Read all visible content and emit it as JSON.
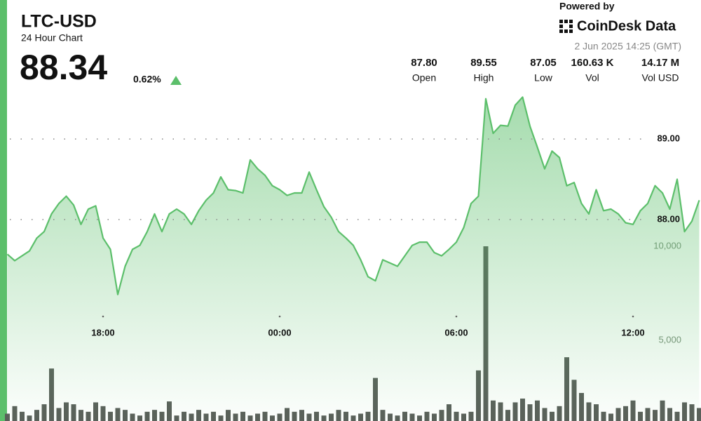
{
  "header": {
    "symbol": "LTC-USD",
    "subtitle": "24 Hour Chart",
    "price": "88.34",
    "change": "0.62%",
    "powered_by": "Powered by",
    "brand": "CoinDesk Data",
    "timestamp": "2 Jun 2025 14:25 (GMT)",
    "stats": [
      {
        "value": "87.80",
        "label": "Open"
      },
      {
        "value": "89.55",
        "label": "High"
      },
      {
        "value": "87.05",
        "label": "Low"
      },
      {
        "value": "160.63 K",
        "label": "Vol"
      },
      {
        "value": "14.17 M",
        "label": "Vol USD"
      }
    ]
  },
  "chart_data": {
    "type": "line",
    "categories": [
      null,
      null,
      null,
      null,
      null,
      null,
      null,
      null,
      null,
      null,
      null,
      null,
      null,
      "18:00",
      null,
      null,
      null,
      null,
      null,
      null,
      null,
      null,
      null,
      null,
      null,
      null,
      null,
      null,
      null,
      null,
      null,
      null,
      null,
      null,
      null,
      null,
      null,
      "00:00",
      null,
      null,
      null,
      null,
      null,
      null,
      null,
      null,
      null,
      null,
      null,
      null,
      null,
      null,
      null,
      null,
      null,
      null,
      null,
      null,
      null,
      null,
      null,
      "06:00",
      null,
      null,
      null,
      null,
      null,
      null,
      null,
      null,
      null,
      null,
      null,
      null,
      null,
      null,
      null,
      null,
      null,
      null,
      null,
      null,
      null,
      null,
      null,
      "12:00",
      null,
      null,
      null,
      null,
      null,
      null,
      null,
      null,
      null
    ],
    "series": [
      {
        "color": "#5cbf6b",
        "values": [
          87.57,
          87.49,
          87.55,
          87.61,
          87.77,
          87.85,
          88.07,
          88.2,
          88.29,
          88.18,
          87.94,
          88.13,
          88.17,
          87.77,
          87.63,
          87.07,
          87.42,
          87.63,
          87.68,
          87.85,
          88.07,
          87.85,
          88.07,
          88.13,
          88.07,
          87.94,
          88.11,
          88.24,
          88.33,
          88.53,
          88.37,
          88.36,
          88.33,
          88.74,
          88.63,
          88.55,
          88.42,
          88.37,
          88.3,
          88.33,
          88.33,
          88.59,
          88.37,
          88.16,
          88.03,
          87.85,
          87.77,
          87.68,
          87.5,
          87.29,
          87.24,
          87.5,
          87.46,
          87.42,
          87.55,
          87.68,
          87.72,
          87.72,
          87.59,
          87.55,
          87.63,
          87.72,
          87.9,
          88.2,
          88.29,
          89.5,
          89.07,
          89.17,
          89.16,
          89.42,
          89.52,
          89.16,
          88.9,
          88.63,
          88.85,
          88.77,
          88.42,
          88.46,
          88.2,
          88.07,
          88.37,
          88.11,
          88.13,
          88.07,
          87.96,
          87.94,
          88.11,
          88.2,
          88.42,
          88.33,
          88.13,
          88.5,
          87.85,
          87.98,
          88.24
        ]
      },
      {
        "type": "bar",
        "axis": "y2",
        "color": "#5a5f5a",
        "values": [
          1100,
          1500,
          1200,
          1000,
          1300,
          1600,
          3500,
          1400,
          1700,
          1600,
          1300,
          1200,
          1700,
          1500,
          1200,
          1400,
          1300,
          1100,
          1000,
          1200,
          1300,
          1200,
          1750,
          1000,
          1200,
          1100,
          1300,
          1100,
          1200,
          1000,
          1300,
          1100,
          1200,
          1000,
          1100,
          1200,
          1000,
          1100,
          1400,
          1200,
          1300,
          1100,
          1200,
          1000,
          1100,
          1300,
          1200,
          1000,
          1100,
          1200,
          3000,
          1300,
          1100,
          1000,
          1200,
          1100,
          1000,
          1200,
          1100,
          1300,
          1600,
          1200,
          1100,
          1200,
          3400,
          10000,
          1800,
          1700,
          1300,
          1700,
          1900,
          1600,
          1800,
          1400,
          1200,
          1500,
          4100,
          2900,
          2200,
          1700,
          1600,
          1200,
          1100,
          1400,
          1500,
          1800,
          1200,
          1400,
          1300,
          1800,
          1400,
          1200,
          1700,
          1600,
          1400
        ]
      }
    ],
    "ylim": [
      85.5,
      89.68
    ],
    "yticks": [
      {
        "value": 88,
        "label": "88.00"
      },
      {
        "value": 89,
        "label": "89.00"
      }
    ],
    "y2lim": [
      0,
      18620
    ],
    "y2ticks": [
      {
        "value": 5000,
        "label": "5,000"
      },
      {
        "value": 10000,
        "label": "10,000"
      }
    ],
    "grid": true
  }
}
